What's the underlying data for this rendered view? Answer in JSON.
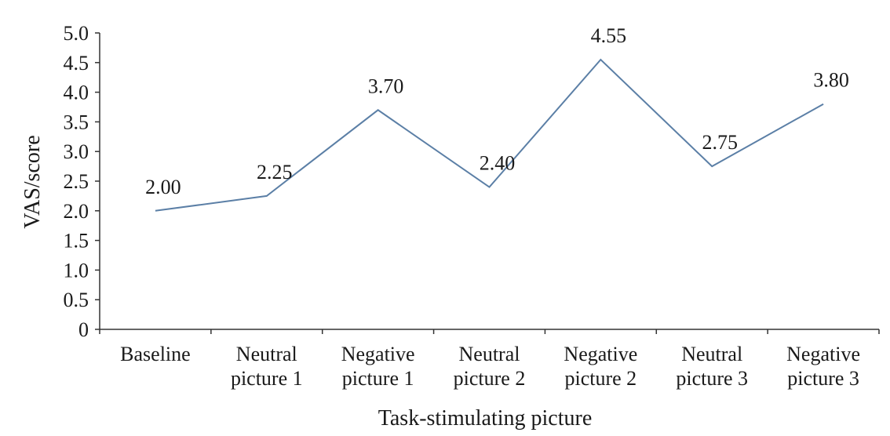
{
  "chart_data": {
    "type": "line",
    "title": "",
    "xlabel": "Task-stimulating picture",
    "ylabel": "VAS/score",
    "ylim": [
      0,
      5.0
    ],
    "yticks": [
      "0",
      "0.5",
      "1.0",
      "1.5",
      "2.0",
      "2.5",
      "3.0",
      "3.5",
      "4.0",
      "4.5",
      "5.0"
    ],
    "categories": [
      [
        "Baseline"
      ],
      [
        "Neutral",
        "picture 1"
      ],
      [
        "Negative",
        "picture 1"
      ],
      [
        "Neutral",
        "picture 2"
      ],
      [
        "Negative",
        "picture 2"
      ],
      [
        "Neutral",
        "picture 3"
      ],
      [
        "Negative",
        "picture 3"
      ]
    ],
    "series": [
      {
        "values": [
          2.0,
          2.25,
          3.7,
          2.4,
          4.55,
          2.75,
          3.8
        ],
        "labels": [
          "2.00",
          "2.25",
          "3.70",
          "2.40",
          "4.55",
          "2.75",
          "3.80"
        ],
        "color": "#5b7fa6"
      }
    ],
    "grid": false,
    "legend": "none"
  }
}
